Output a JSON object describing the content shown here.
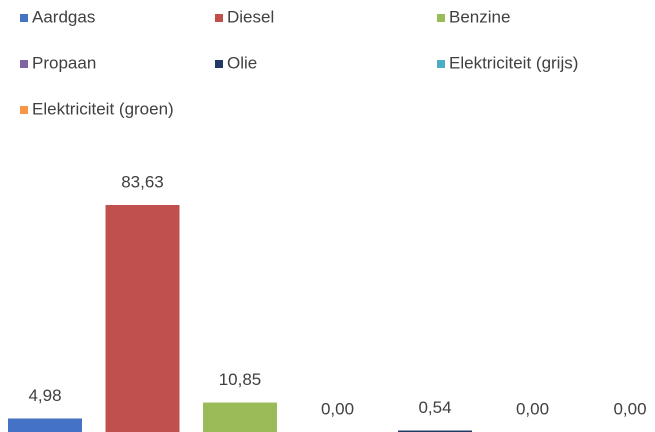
{
  "chart_data": {
    "type": "bar",
    "series": [
      {
        "name": "Aardgas",
        "color": "#4472c4",
        "values": [
          4.98
        ],
        "value_labels": [
          "4,98"
        ]
      },
      {
        "name": "Diesel",
        "color": "#c0504d",
        "values": [
          83.63
        ],
        "value_labels": [
          "83,63"
        ]
      },
      {
        "name": "Benzine",
        "color": "#9bbb59",
        "values": [
          10.85
        ],
        "value_labels": [
          "10,85"
        ]
      },
      {
        "name": "Propaan",
        "color": "#8064a2",
        "values": [
          0.0
        ],
        "value_labels": [
          "0,00"
        ]
      },
      {
        "name": "Olie",
        "color": "#1f3864",
        "values": [
          0.54
        ],
        "value_labels": [
          "0,54"
        ]
      },
      {
        "name": "Elektriciteit (grijs)",
        "color": "#4bacc6",
        "values": [
          0.0
        ],
        "value_labels": [
          "0,00"
        ]
      },
      {
        "name": "Elektriciteit (groen)",
        "color": "#f79646",
        "values": [
          0.0
        ],
        "value_labels": [
          "0,00"
        ]
      }
    ],
    "legend": "top"
  }
}
